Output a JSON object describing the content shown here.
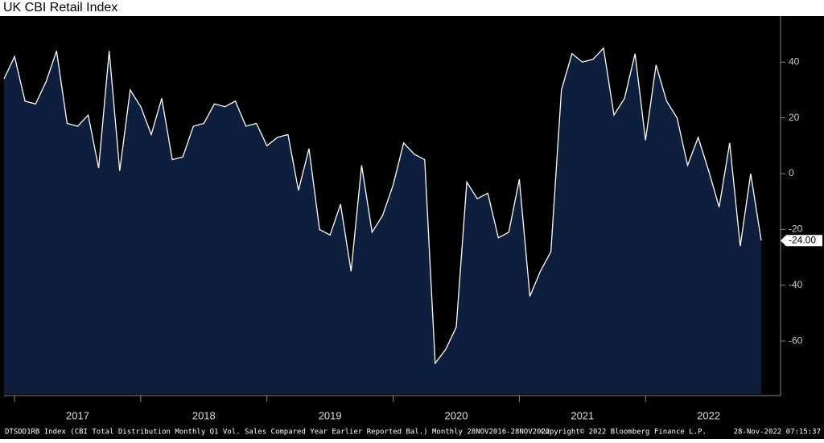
{
  "chart_data": {
    "type": "area",
    "title": "UK CBI Retail Index",
    "values": [
      34,
      42,
      26,
      25,
      33,
      44,
      18,
      17,
      21,
      2,
      44,
      1,
      30,
      24,
      14,
      27,
      5,
      6,
      17,
      18,
      25,
      24,
      26,
      17,
      18,
      10,
      13,
      14,
      -6,
      9,
      -20,
      -22,
      -11,
      -35,
      3,
      -21,
      -15,
      -4,
      11,
      7,
      5,
      -68,
      -63,
      -55,
      -3,
      -9,
      -7,
      -23,
      -21,
      -2,
      -44,
      -35,
      -28,
      30,
      43,
      40,
      41,
      45,
      21,
      27,
      43,
      12,
      39,
      26,
      20,
      3,
      13,
      1,
      -12,
      11,
      -26,
      0,
      -24
    ],
    "last_value_label": "-24.00",
    "years": [
      "2017",
      "2018",
      "2019",
      "2020",
      "2021",
      "2022"
    ],
    "ylim": [
      -79,
      56.5
    ],
    "yticks": [
      40,
      20,
      0,
      -20,
      -40,
      -60
    ],
    "line_color": "#ffffff",
    "fill_color": "#0d1f3c",
    "footer": {
      "description": "DTSDD1RB Index (CBI Total Distribution Monthly Q1 Vol. Sales Compared Year Earlier Reported Bal.) Monthly 28NOV2016-28NOV2022",
      "copyright": "Copyright© 2022 Bloomberg Finance L.P.",
      "timestamp": "28-Nov-2022 07:15:37"
    }
  }
}
